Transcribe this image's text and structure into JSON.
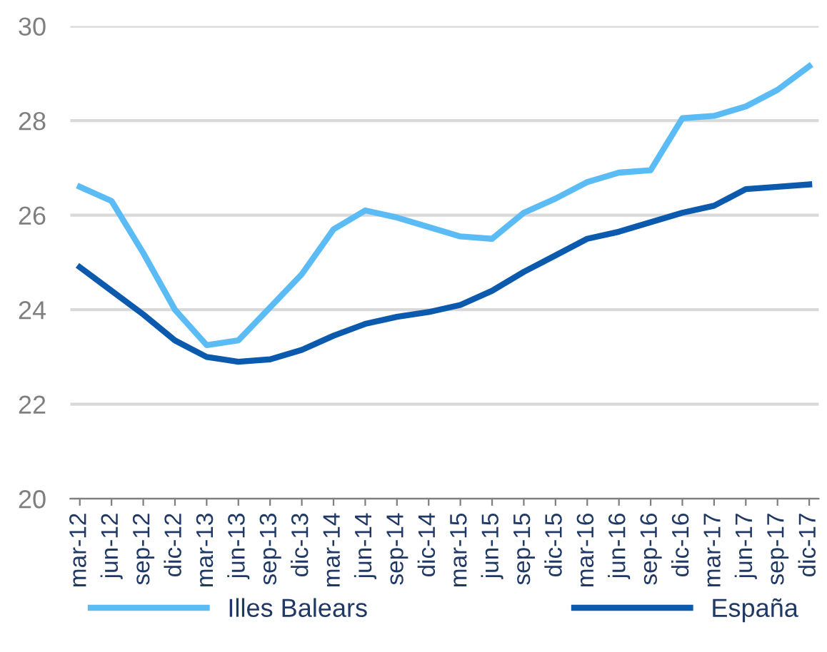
{
  "chart_data": {
    "type": "line",
    "categories": [
      "mar-12",
      "jun-12",
      "sep-12",
      "dic-12",
      "mar-13",
      "jun-13",
      "sep-13",
      "dic-13",
      "mar-14",
      "jun-14",
      "sep-14",
      "dic-14",
      "mar-15",
      "jun-15",
      "sep-15",
      "dic-15",
      "mar-16",
      "jun-16",
      "sep-16",
      "dic-16",
      "mar-17",
      "jun-17",
      "sep-17",
      "dic-17"
    ],
    "series": [
      {
        "name": "Illes Balears",
        "color": "#5bbcf5",
        "values": [
          26.6,
          26.3,
          25.2,
          24.0,
          23.25,
          23.35,
          24.05,
          24.75,
          25.7,
          26.1,
          25.95,
          25.75,
          25.55,
          25.5,
          26.05,
          26.35,
          26.7,
          26.9,
          26.95,
          28.05,
          28.1,
          28.3,
          28.65,
          29.15
        ]
      },
      {
        "name": "España",
        "color": "#0b5aad",
        "values": [
          24.9,
          24.4,
          23.9,
          23.35,
          23.0,
          22.9,
          22.95,
          23.15,
          23.45,
          23.7,
          23.85,
          23.95,
          24.1,
          24.4,
          24.8,
          25.15,
          25.5,
          25.65,
          25.85,
          26.05,
          26.2,
          26.55,
          26.6,
          26.65
        ]
      }
    ],
    "ylim": [
      20,
      30
    ],
    "yticks": [
      20,
      22,
      24,
      26,
      28,
      30
    ],
    "grid": "y",
    "legend": "bottom",
    "marker": "none",
    "line_style": "solid"
  }
}
